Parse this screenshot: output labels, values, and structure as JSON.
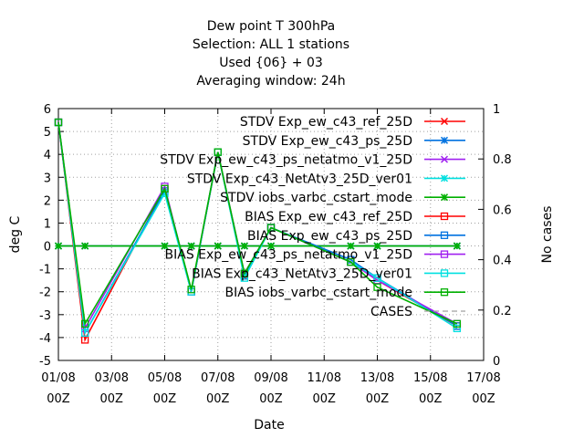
{
  "chart_data": {
    "type": "line",
    "title_lines": [
      "Dew point T 300hPa",
      "Selection: ALL      1 stations",
      "Used {06} + 03",
      "Averaging window: 24h"
    ],
    "xlabel": "Date",
    "ylabel": "deg C",
    "y2label": "No cases",
    "x_ticks": [
      {
        "day": 1,
        "label1": "01/08",
        "label2": "00Z"
      },
      {
        "day": 3,
        "label1": "03/08",
        "label2": "00Z"
      },
      {
        "day": 5,
        "label1": "05/08",
        "label2": "00Z"
      },
      {
        "day": 7,
        "label1": "07/08",
        "label2": "00Z"
      },
      {
        "day": 9,
        "label1": "09/08",
        "label2": "00Z"
      },
      {
        "day": 11,
        "label1": "11/08",
        "label2": "00Z"
      },
      {
        "day": 13,
        "label1": "13/08",
        "label2": "00Z"
      },
      {
        "day": 15,
        "label1": "15/08",
        "label2": "00Z"
      },
      {
        "day": 17,
        "label1": "17/08",
        "label2": "00Z"
      }
    ],
    "xlim": [
      1,
      17
    ],
    "ylim": [
      -5,
      6
    ],
    "y_ticks": [
      -5,
      -4,
      -3,
      -2,
      -1,
      0,
      1,
      2,
      3,
      4,
      5,
      6
    ],
    "y2lim": [
      0,
      1
    ],
    "y2_ticks": [
      "0",
      "0.2",
      "0.4",
      "0.6",
      "0.8",
      "1"
    ],
    "grid": true,
    "legend_position": "top-right",
    "x": [
      1,
      2,
      5,
      6,
      7,
      8,
      9,
      12,
      13,
      16
    ],
    "series": [
      {
        "name": "STDV Exp_ew_c43_ref_25D",
        "color": "#ff0000",
        "marker": "x",
        "values": [
          0,
          0,
          0,
          0,
          0,
          0,
          0,
          0,
          0,
          0
        ]
      },
      {
        "name": "STDV Exp_ew_c43_ps_25D",
        "color": "#0072e0",
        "marker": "star",
        "values": [
          0,
          0,
          0,
          0,
          0,
          0,
          0,
          0,
          0,
          0
        ]
      },
      {
        "name": "STDV Exp_ew_c43_ps_netatmo_v1_25D",
        "color": "#a020f0",
        "marker": "x",
        "values": [
          0,
          0,
          0,
          0,
          0,
          0,
          0,
          0,
          0,
          0
        ]
      },
      {
        "name": "STDV Exp_c43_NetAtv3_25D_ver01",
        "color": "#00e0e0",
        "marker": "star",
        "values": [
          0,
          0,
          0,
          0,
          0,
          0,
          0,
          0,
          0,
          0
        ]
      },
      {
        "name": "STDV iobs_varbc_cstart_mode",
        "color": "#00b000",
        "marker": "star",
        "values": [
          0,
          0,
          0,
          0,
          0,
          0,
          0,
          0,
          0,
          0
        ]
      },
      {
        "name": "BIAS Exp_ew_c43_ref_25D",
        "color": "#ff0000",
        "marker": "square",
        "values": [
          5.4,
          -4.1,
          2.5,
          -2.0,
          4.1,
          -1.3,
          0.8,
          -0.7,
          -1.5,
          -3.5
        ]
      },
      {
        "name": "BIAS Exp_ew_c43_ps_25D",
        "color": "#0072e0",
        "marker": "square",
        "values": [
          5.4,
          -3.8,
          2.4,
          -2.0,
          4.1,
          -1.3,
          0.8,
          -0.6,
          -1.4,
          -3.5
        ]
      },
      {
        "name": "BIAS Exp_ew_c43_ps_netatmo_v1_25D",
        "color": "#a020f0",
        "marker": "square",
        "values": [
          5.4,
          -3.6,
          2.6,
          -2.0,
          4.1,
          -1.2,
          0.8,
          -0.7,
          -1.5,
          -3.4
        ]
      },
      {
        "name": "BIAS Exp_c43_NetAtv3_25D_ver01",
        "color": "#00e0e0",
        "marker": "square",
        "values": [
          5.4,
          -3.8,
          2.3,
          -2.0,
          4.1,
          -1.4,
          0.8,
          -0.7,
          -1.4,
          -3.6
        ]
      },
      {
        "name": "BIAS iobs_varbc_cstart_mode",
        "color": "#00b000",
        "marker": "square",
        "values": [
          5.4,
          -3.4,
          2.5,
          -1.9,
          4.1,
          -1.2,
          0.8,
          -0.7,
          -1.8,
          -3.4
        ]
      }
    ],
    "cases": {
      "name": "CASES",
      "color": "#a0a0a0",
      "values": []
    }
  }
}
